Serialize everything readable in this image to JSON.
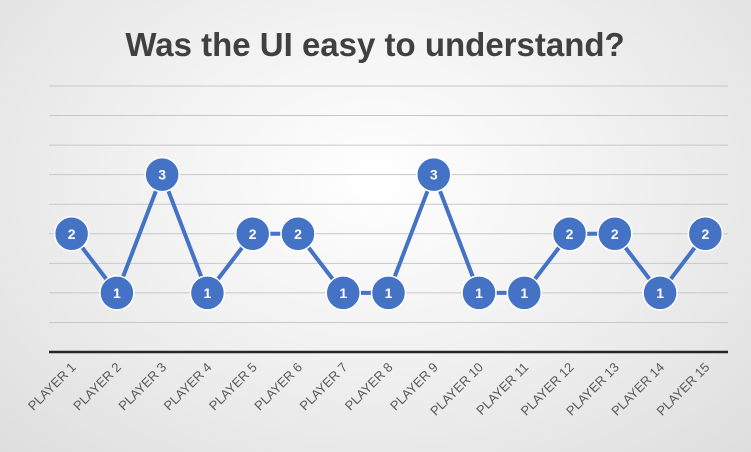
{
  "chart_data": {
    "type": "line",
    "title": "Was the UI easy to understand?",
    "categories": [
      "PLAYER 1",
      "PLAYER 2",
      "PLAYER 3",
      "PLAYER 4",
      "PLAYER 5",
      "PLAYER 6",
      "PLAYER 7",
      "PLAYER 8",
      "PLAYER 9",
      "PLAYER 10",
      "PLAYER 11",
      "PLAYER 12",
      "PLAYER 13",
      "PLAYER 14",
      "PLAYER 15"
    ],
    "values": [
      2,
      1,
      3,
      1,
      2,
      2,
      1,
      1,
      3,
      1,
      1,
      2,
      2,
      1,
      2
    ],
    "ylim": [
      0,
      4.5
    ],
    "grid": true,
    "legend": "none",
    "data_labels": true,
    "y_tick_labels_shown": false,
    "colors": {
      "line": "#4472c4",
      "marker": "#4472c4",
      "marker_border": "#ffffff",
      "gridline": "#c8c8c8",
      "axis": "#262626",
      "title": "#404040"
    }
  }
}
